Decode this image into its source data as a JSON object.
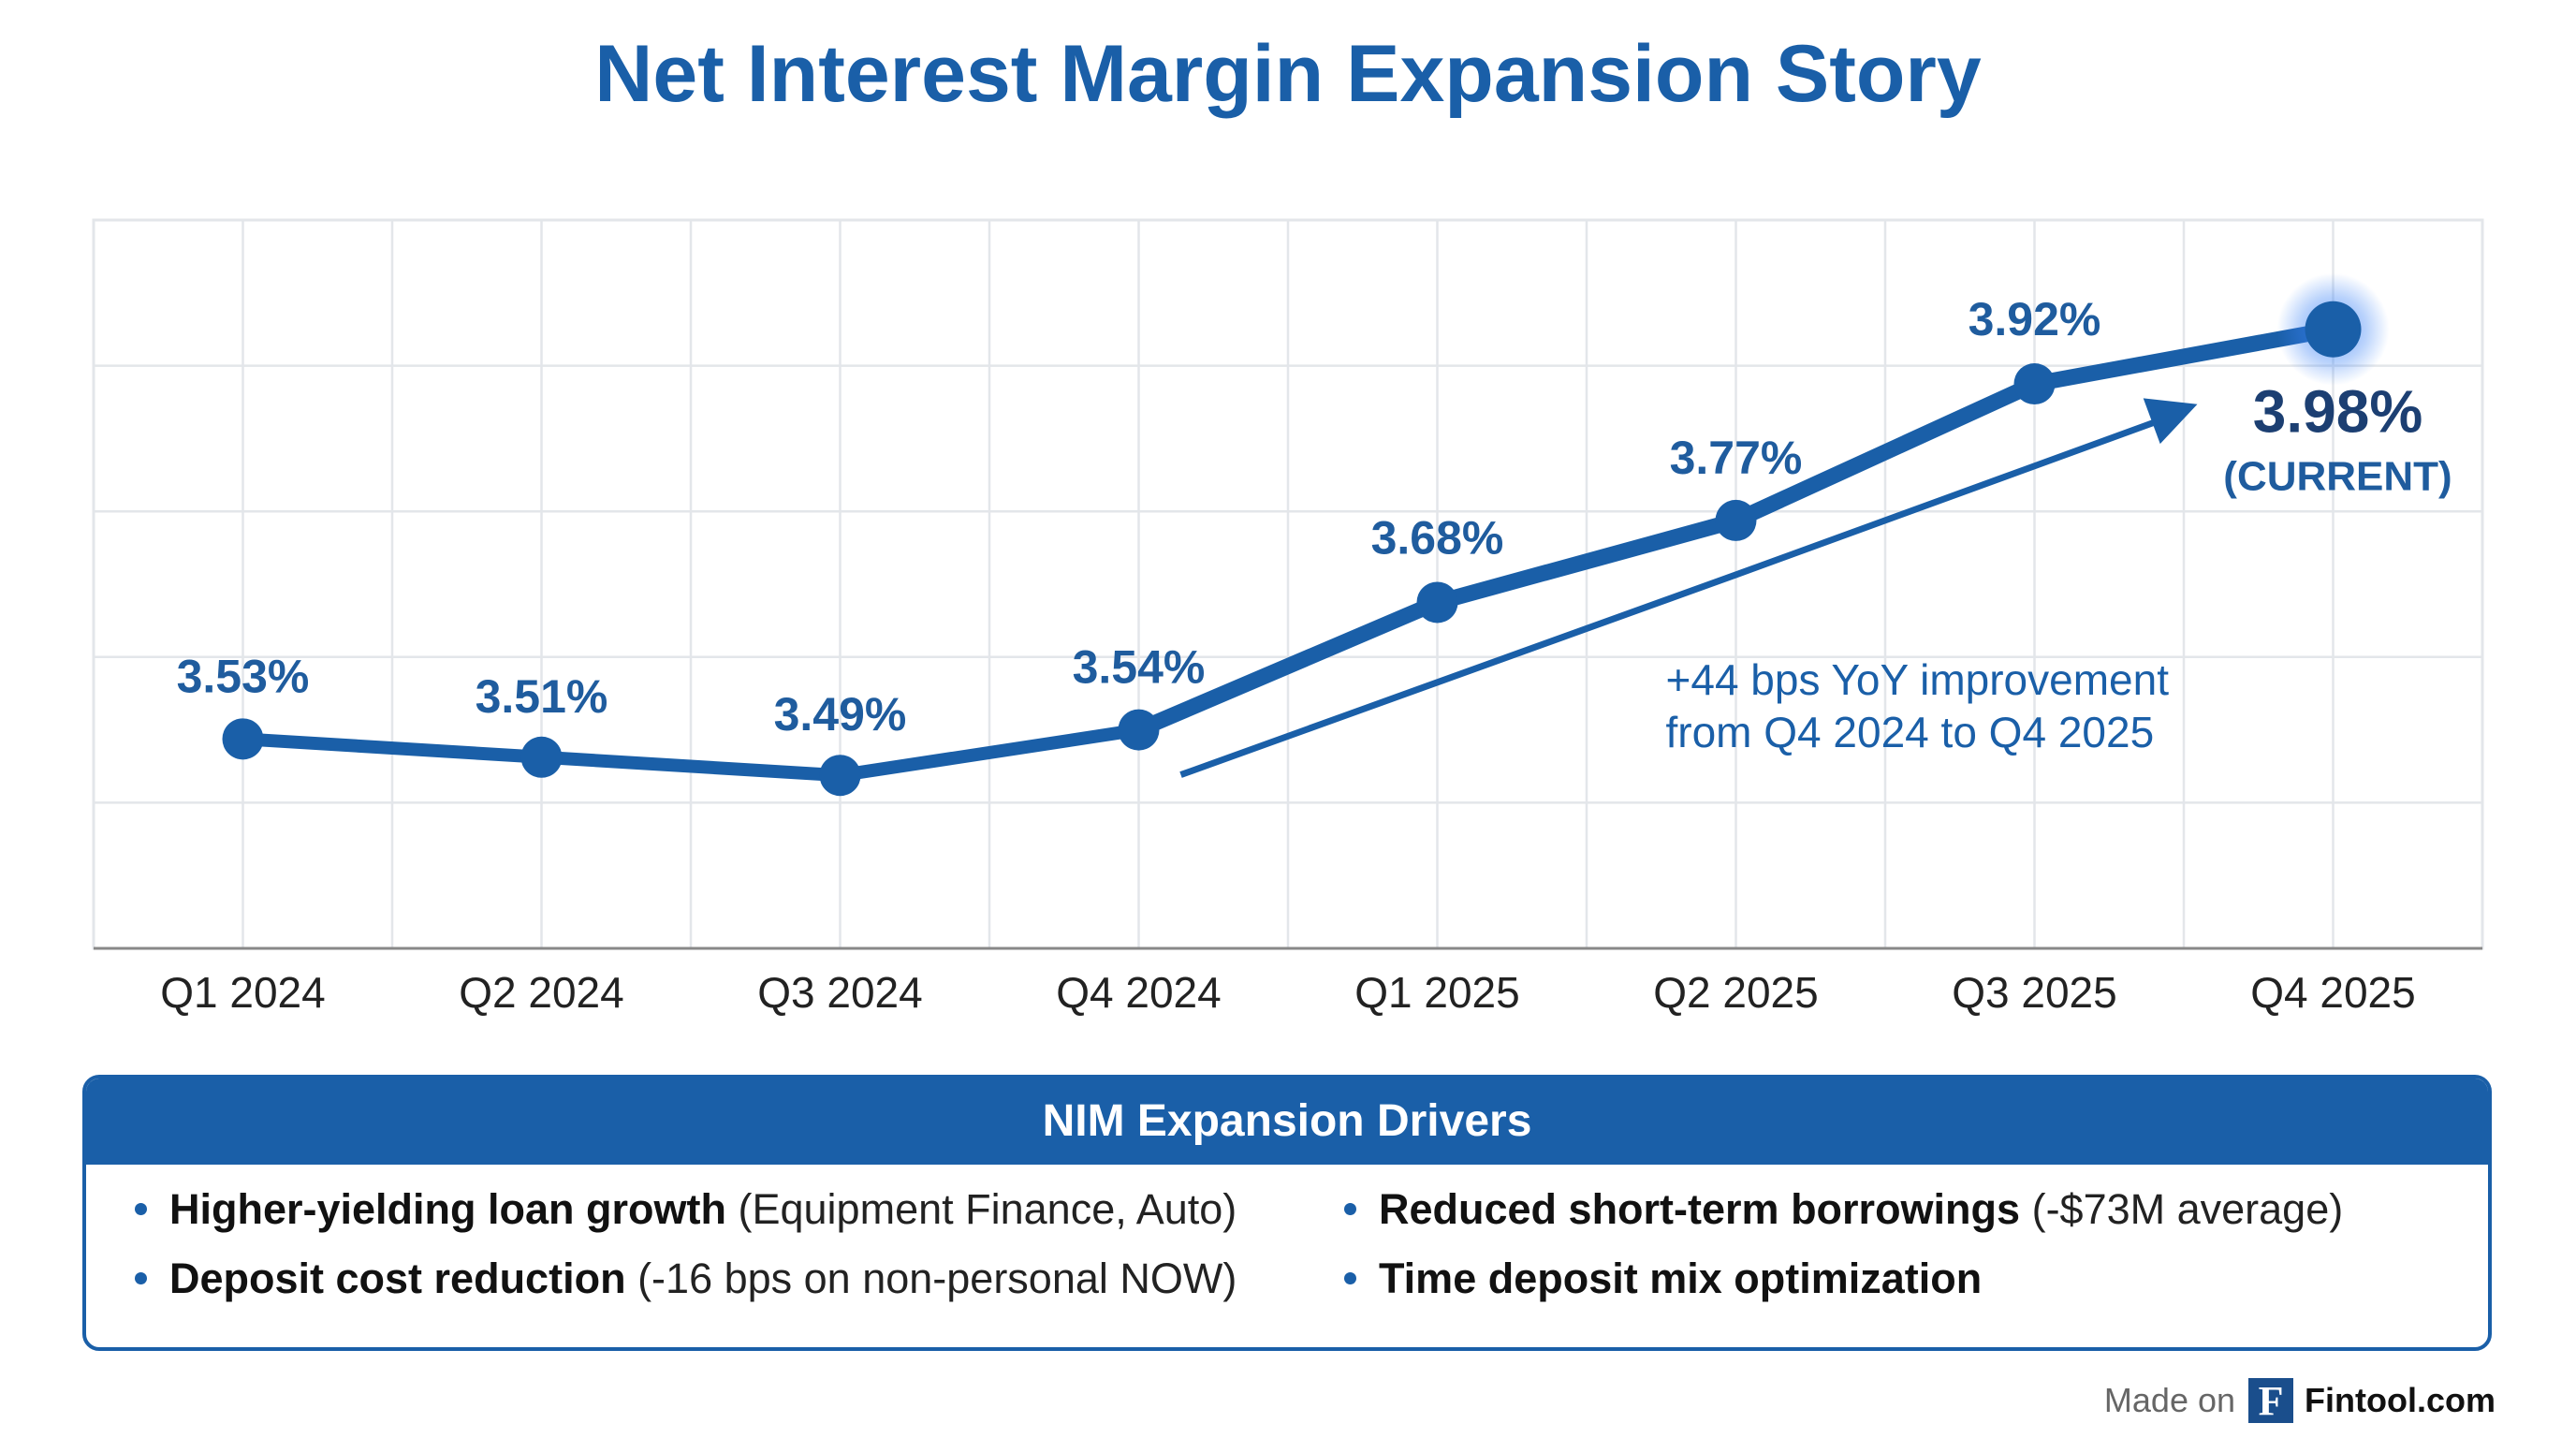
{
  "chart_data": {
    "type": "line",
    "title": "Net Interest Margin Expansion Story",
    "categories": [
      "Q1 2024",
      "Q2 2024",
      "Q3 2024",
      "Q4 2024",
      "Q1 2025",
      "Q2 2025",
      "Q3 2025",
      "Q4 2025"
    ],
    "values": [
      3.53,
      3.51,
      3.49,
      3.54,
      3.68,
      3.77,
      3.92,
      3.98
    ],
    "value_labels": [
      "3.53%",
      "3.51%",
      "3.49%",
      "3.54%",
      "3.68%",
      "3.77%",
      "3.92%",
      "3.98%"
    ],
    "current_label": "(CURRENT)",
    "annotation": {
      "line1": "+44 bps YoY improvement",
      "line2": "from Q4 2024 to Q4 2025",
      "from": "Q4 2024",
      "to": "Q4 2025"
    },
    "ylim": [
      3.3,
      4.1
    ],
    "grid": true,
    "colors": {
      "line": "#1a5fa8",
      "label": "#1f5c9e",
      "current_label": "#1c3f72",
      "grid": "#e3e6ea",
      "axis": "#888888",
      "glow": "#3b82f6"
    }
  },
  "drivers": {
    "header": "NIM Expansion Drivers",
    "items": [
      {
        "bold": "Higher-yielding loan growth",
        "rest": " (Equipment Finance, Auto)"
      },
      {
        "bold": "Reduced short-term borrowings",
        "rest": " (-$73M average)"
      },
      {
        "bold": "Deposit cost reduction",
        "rest": " (-16 bps on non-personal NOW)"
      },
      {
        "bold": "Time deposit mix optimization",
        "rest": ""
      }
    ]
  },
  "footer": {
    "made_on": "Made on",
    "logo_letter": "F",
    "brand": "Fintool.com"
  }
}
